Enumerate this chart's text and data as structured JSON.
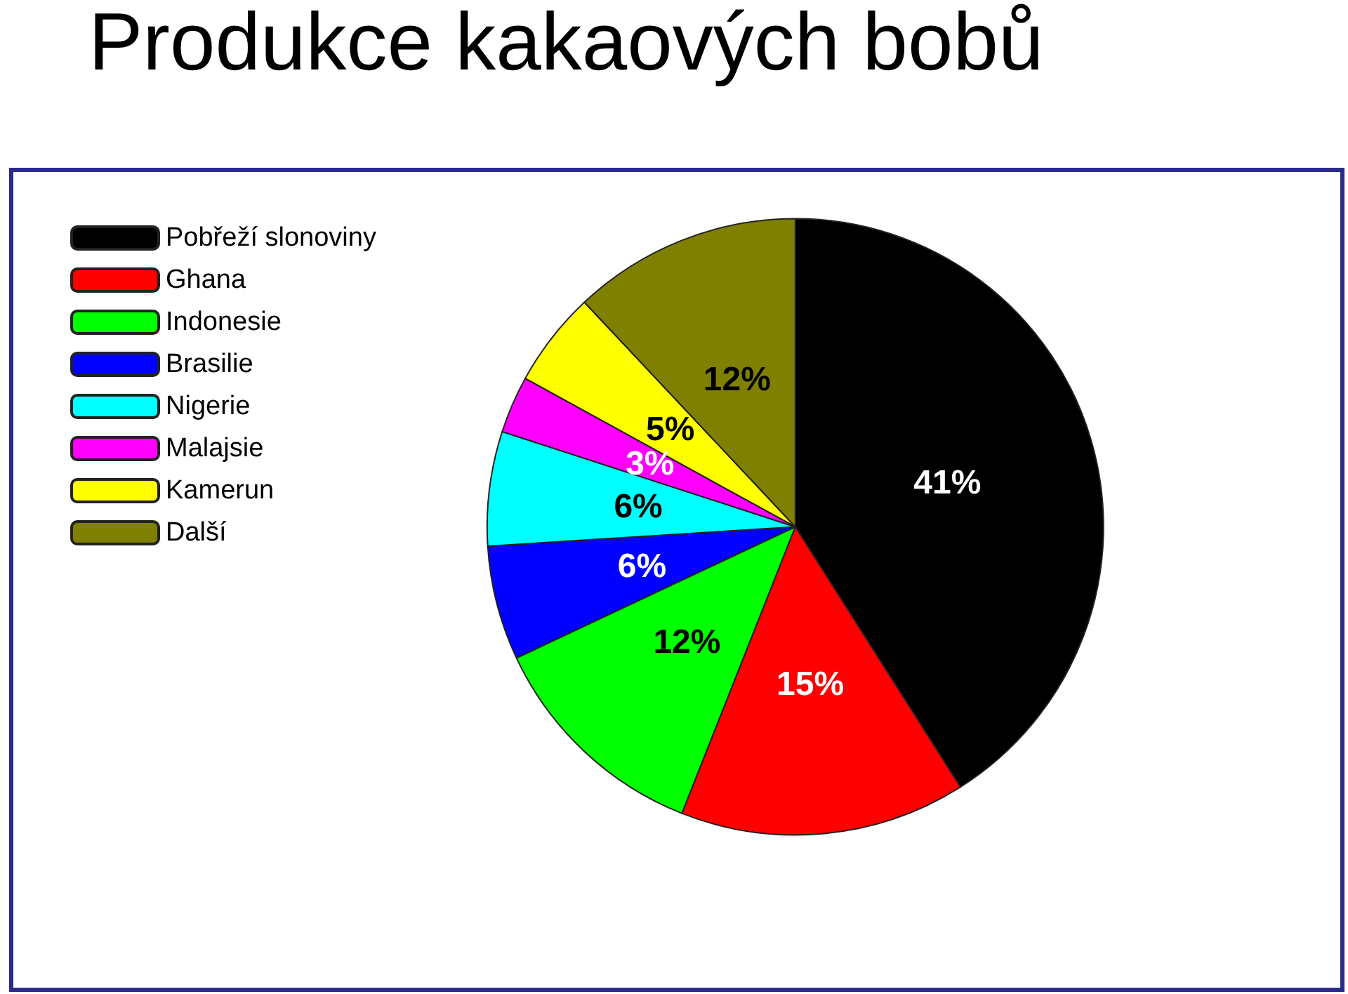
{
  "chart_data": {
    "type": "pie",
    "title": "Produkce kakaových bobů",
    "categories": [
      "Pobřeží slonoviny",
      "Ghana",
      "Indonesie",
      "Brasilie",
      "Nigerie",
      "Malajsie",
      "Kamerun",
      "Další"
    ],
    "values": [
      41,
      15,
      12,
      6,
      6,
      3,
      5,
      12
    ],
    "value_labels": [
      "41%",
      "15%",
      "12%",
      "6%",
      "6%",
      "3%",
      "5%",
      "12%"
    ],
    "colors": [
      "#000000",
      "#ff0000",
      "#00ff00",
      "#0000ff",
      "#00ffff",
      "#ff00ff",
      "#ffff00",
      "#808000"
    ],
    "legend": "top left"
  }
}
